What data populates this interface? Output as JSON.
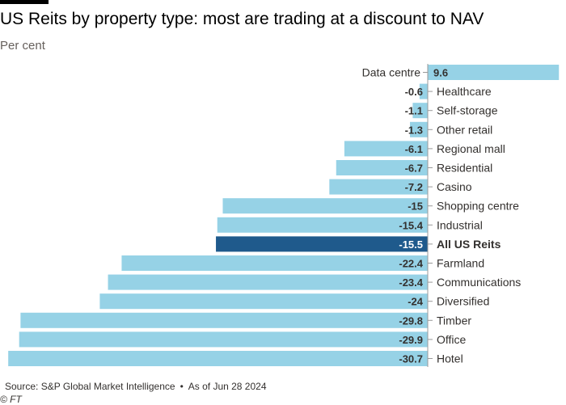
{
  "header": {
    "title": "US Reits by property type: most are trading at a discount to NAV",
    "subtitle": "Per cent"
  },
  "footer": {
    "source": "Source: S&P Global Market Intelligence",
    "separator": "•",
    "date": "As of Jun 28 2024",
    "credit": "© FT"
  },
  "colors": {
    "bar": "#96d2e6",
    "highlight": "#1f5a8c",
    "axis": "#999999"
  },
  "chart_data": {
    "type": "bar",
    "orientation": "horizontal",
    "title": "US Reits by property type: most are trading at a discount to NAV",
    "ylabel": "Per cent",
    "xlim": [
      -30.7,
      9.6
    ],
    "highlight": "All US Reits",
    "categories": [
      "Data centre",
      "Healthcare",
      "Self-storage",
      "Other retail",
      "Regional mall",
      "Residential",
      "Casino",
      "Shopping centre",
      "Industrial",
      "All US Reits",
      "Farmland",
      "Communications",
      "Diversified",
      "Timber",
      "Office",
      "Hotel"
    ],
    "values": [
      9.6,
      -0.6,
      -1.1,
      -1.3,
      -6.1,
      -6.7,
      -7.2,
      -15,
      -15.4,
      -15.5,
      -22.4,
      -23.4,
      -24,
      -29.8,
      -29.9,
      -30.7
    ]
  }
}
